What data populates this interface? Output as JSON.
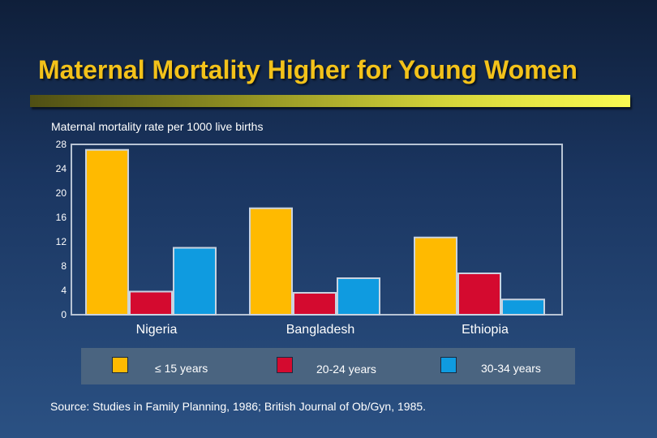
{
  "title": "Maternal Mortality Higher for Young Women",
  "source": "Source:  Studies in Family Planning, 1986; British Journal of Ob/Gyn, 1985.",
  "colors": {
    "series1": "#ffba00",
    "series2": "#d40a2f",
    "series3": "#0f9be0",
    "title": "#f3c21a"
  },
  "chart_data": {
    "type": "bar",
    "title": "Maternal Mortality Higher for Young Women",
    "ylabel": "Maternal mortality rate per 1000 live births",
    "xlabel": "",
    "ylim": [
      0,
      28
    ],
    "yticks": [
      0,
      4,
      8,
      12,
      16,
      20,
      24,
      28
    ],
    "categories": [
      "Nigeria",
      "Bangladesh",
      "Ethiopia"
    ],
    "series": [
      {
        "name": "≤ 15 years",
        "values": [
          27.1,
          17.5,
          12.7
        ]
      },
      {
        "name": "20-24 years",
        "values": [
          3.8,
          3.6,
          6.8
        ]
      },
      {
        "name": "30-34 years",
        "values": [
          11.0,
          6.0,
          2.5
        ]
      }
    ],
    "grid": false,
    "legend": "bottom"
  }
}
